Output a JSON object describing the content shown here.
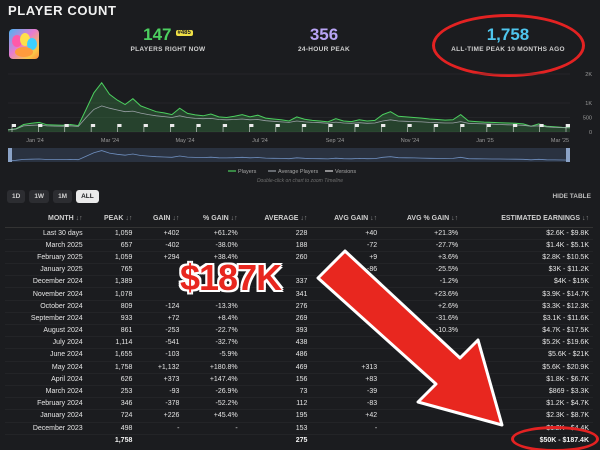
{
  "header": {
    "title": "PLAYER COUNT"
  },
  "stats": {
    "current": {
      "value": "147",
      "rank": "#485",
      "label": "PLAYERS RIGHT NOW"
    },
    "peak24": {
      "value": "356",
      "label": "24-HOUR PEAK"
    },
    "allTime": {
      "value": "1,758",
      "label": "ALL-TIME PEAK 10 MONTHS AGO"
    }
  },
  "chart": {
    "y_ticks": [
      "2K",
      "1K",
      "500",
      "0"
    ],
    "x_ticks": [
      "Jan '24",
      "Mar '24",
      "May '24",
      "Jul '24",
      "Sep '24",
      "Nov '24",
      "Jan '25",
      "Mar '25"
    ],
    "legend": [
      "Players",
      "Average Players",
      "Versions"
    ],
    "hint": "Double-click on chart to zoom Timeline",
    "player_series": [
      80,
      110,
      260,
      300,
      330,
      250,
      240,
      230,
      260,
      220,
      780,
      1350,
      1700,
      1300,
      1100,
      950,
      1150,
      900,
      800,
      700,
      660,
      600,
      820,
      640,
      590,
      560,
      620,
      520,
      500,
      540,
      600,
      520,
      580,
      480,
      450,
      420,
      380,
      520,
      440,
      400,
      380,
      350,
      460,
      380,
      360,
      420,
      380,
      400,
      600,
      700,
      540,
      520,
      500,
      480,
      450,
      430,
      410,
      420,
      600,
      380,
      360,
      340,
      330,
      320,
      310,
      300,
      280,
      200,
      280,
      200,
      180,
      160,
      150
    ],
    "average_series": [
      70,
      100,
      210,
      230,
      240,
      210,
      205,
      200,
      215,
      190,
      500,
      780,
      900,
      820,
      760,
      700,
      720,
      650,
      600,
      560,
      530,
      500,
      560,
      500,
      470,
      460,
      470,
      430,
      420,
      430,
      450,
      420,
      430,
      390,
      370,
      350,
      330,
      380,
      350,
      330,
      320,
      300,
      340,
      310,
      300,
      320,
      300,
      310,
      380,
      420,
      380,
      370,
      360,
      350,
      330,
      320,
      310,
      310,
      360,
      300,
      290,
      280,
      270,
      260,
      250,
      240,
      230,
      200,
      210,
      180,
      160,
      150,
      140
    ]
  },
  "range": {
    "buttons": [
      "1D",
      "1W",
      "1M",
      "ALL"
    ],
    "active": "ALL",
    "hide_table": "HIDE TABLE"
  },
  "table": {
    "headers": [
      "MONTH",
      "PEAK",
      "GAIN",
      "% GAIN",
      "AVERAGE",
      "AVG GAIN",
      "AVG % GAIN",
      "ESTIMATED EARNINGS"
    ],
    "rows": [
      [
        "Last 30 days",
        "1,059",
        "+402",
        "+61.2%",
        "228",
        "+40",
        "+21.3%",
        "$2.6K - $9.8K"
      ],
      [
        "March 2025",
        "657",
        "-402",
        "-38.0%",
        "188",
        "-72",
        "-27.7%",
        "$1.4K - $5.1K"
      ],
      [
        "February 2025",
        "1,059",
        "+294",
        "+38.4%",
        "260",
        "+9",
        "+3.6%",
        "$2.8K - $10.5K"
      ],
      [
        "January 2025",
        "765",
        "",
        "",
        "",
        "-86",
        "-25.5%",
        "$3K - $11.2K"
      ],
      [
        "December 2024",
        "1,389",
        "",
        "",
        "337",
        "-4",
        "-1.2%",
        "$4K - $15K"
      ],
      [
        "November 2024",
        "1,078",
        "",
        "",
        "341",
        "+65",
        "+23.6%",
        "$3.9K - $14.7K"
      ],
      [
        "October 2024",
        "809",
        "-124",
        "-13.3%",
        "276",
        "",
        "+2.6%",
        "$3.3K - $12.3K"
      ],
      [
        "September 2024",
        "933",
        "+72",
        "+8.4%",
        "269",
        "",
        "-31.6%",
        "$3.1K - $11.6K"
      ],
      [
        "August 2024",
        "861",
        "-253",
        "-22.7%",
        "393",
        "",
        "-10.3%",
        "$4.7K - $17.5K"
      ],
      [
        "July 2024",
        "1,114",
        "-541",
        "-32.7%",
        "438",
        "",
        "",
        "$5.2K - $19.6K"
      ],
      [
        "June 2024",
        "1,655",
        "-103",
        "-5.9%",
        "486",
        "",
        "",
        "$5.6K - $21K"
      ],
      [
        "May 2024",
        "1,758",
        "+1,132",
        "+180.8%",
        "469",
        "+313",
        "",
        "$5.6K - $20.9K"
      ],
      [
        "April 2024",
        "626",
        "+373",
        "+147.4%",
        "156",
        "+83",
        "",
        "$1.8K - $6.7K"
      ],
      [
        "March 2024",
        "253",
        "-93",
        "-26.9%",
        "73",
        "-39",
        "",
        "$869 - $3.3K"
      ],
      [
        "February 2024",
        "346",
        "-378",
        "-52.2%",
        "112",
        "-83",
        "",
        "$1.2K - $4.7K"
      ],
      [
        "January 2024",
        "724",
        "+226",
        "+45.4%",
        "195",
        "+42",
        "",
        "$2.3K - $8.7K"
      ],
      [
        "December 2023",
        "498",
        "-",
        "-",
        "153",
        "-",
        "",
        "$1.2K - $4.4K"
      ]
    ],
    "total": [
      "",
      "1,758",
      "",
      "",
      "275",
      "",
      "",
      "$50K - $187.4K"
    ]
  },
  "annotation": {
    "big_text": "$187K"
  },
  "colors": {
    "accent_green": "#4ccf5f",
    "purple": "#b9a4f4",
    "cyan": "#4fc6ee",
    "red": "#e32222",
    "loss_red": "#e04747"
  },
  "icons": {
    "thumbnail": "game-thumbnail-icon"
  }
}
